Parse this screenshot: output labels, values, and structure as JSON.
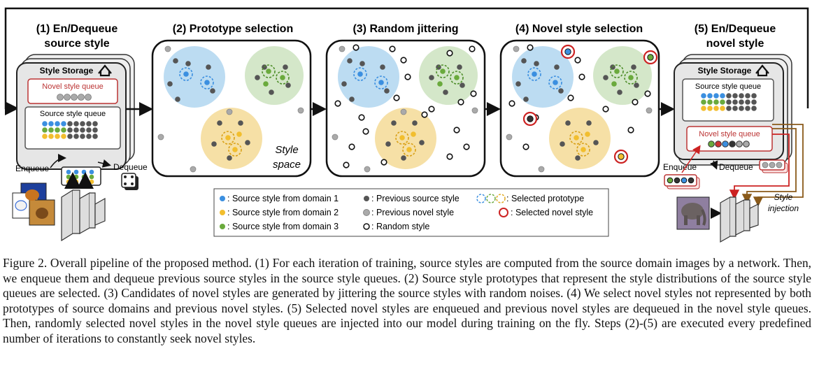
{
  "steps": [
    {
      "line1": "(1) En/Dequeue",
      "line2": "source style"
    },
    {
      "line1": "(2) Prototype selection"
    },
    {
      "line1": "(3) Random jittering"
    },
    {
      "line1": "(4) Novel style selection"
    },
    {
      "line1": "(5) En/Dequeue",
      "line2": "novel style"
    }
  ],
  "storage": {
    "title": "Style Storage",
    "novel_queue_label": "Novel style queue",
    "source_queue_label": "Source style queue"
  },
  "labels": {
    "enqueue": "Enqueue",
    "dequeue": "Dequeue",
    "style_space_1": "Style",
    "style_space_2": "space",
    "style_injection_1": "Style",
    "style_injection_2": "injection"
  },
  "legend": [
    {
      "text": ": Source style from domain 1",
      "color": "#3b8fe0"
    },
    {
      "text": ": Source style from domain 2",
      "color": "#f2be2e"
    },
    {
      "text": ": Source style from domain 3",
      "color": "#6aaa3c"
    },
    {
      "text": ": Previous source style",
      "color": "#555555"
    },
    {
      "text": ": Previous novel style",
      "color": "#aaaaaa"
    },
    {
      "text": ": Random style",
      "color": "#ffffff"
    },
    {
      "text": ": Selected prototype"
    },
    {
      "text": ": Selected novel style",
      "color": "#cc2222"
    }
  ],
  "colors": {
    "domain1": "#3b8fe0",
    "domain2": "#f2be2e",
    "domain3": "#6aaa3c",
    "cluster1": "#bcdcf2",
    "cluster2": "#f6e0a6",
    "cluster3": "#d4e7c9",
    "prev_source": "#555555",
    "prev_novel": "#aaaaaa",
    "novel_red": "#cc2222",
    "injection_brown": "#8a5a1a"
  },
  "icons": [
    "home-icon",
    "dice-icon",
    "dog-photo-icon",
    "elephant-photo-icon",
    "network-icon"
  ],
  "caption": "Figure 2. Overall pipeline of the proposed method. (1) For each iteration of training, source styles are computed from the source domain images by a network. Then, we enqueue them and dequeue previous source styles in the source style queues. (2) Source style prototypes that represent the style distributions of the source style queues are selected. (3) Candidates of novel styles are generated by jittering the source styles with random noises. (4) We select novel styles not represented by both prototypes of source domains and previous novel styles. (5) Selected novel styles are enqueued and previous novel styles are dequeued in the novel style queues. Then, randomly selected novel styles in the novel style queues are injected into our model during training on the fly. Steps (2)-(5) are executed every predefined number of iterations to constantly seek novel styles."
}
